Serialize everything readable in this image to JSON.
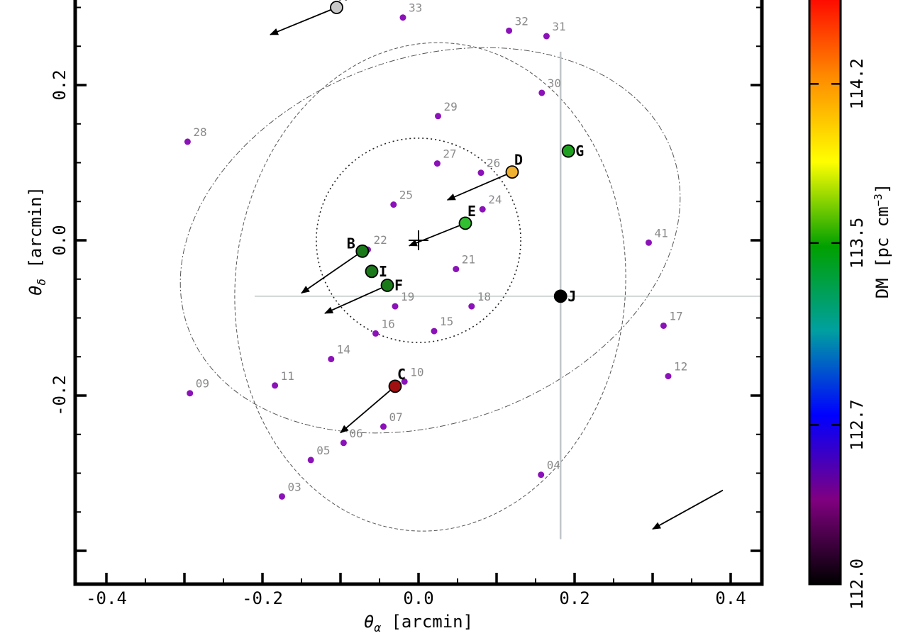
{
  "chart_data": {
    "type": "scatter",
    "xlabel": "θ_α [arcmin]",
    "ylabel": "θ_δ [arcmin]",
    "xlim": [
      -0.44,
      0.44
    ],
    "ylim": [
      -0.44,
      0.31
    ],
    "grid": false,
    "x_ticks": [
      {
        "value": -0.4,
        "label": "-0.4"
      },
      {
        "value": -0.2,
        "label": "-0.2"
      },
      {
        "value": 0.0,
        "label": "0.0"
      },
      {
        "value": 0.2,
        "label": "0.2"
      },
      {
        "value": 0.4,
        "label": "0.4"
      }
    ],
    "y_ticks": [
      {
        "value": -0.2,
        "label": "-0.2"
      },
      {
        "value": 0.0,
        "label": "0.0"
      },
      {
        "value": 0.2,
        "label": "0.2"
      }
    ],
    "colorbar": {
      "label": "DM [pc cm⁻³]",
      "range": [
        112.0,
        114.6
      ],
      "ticks": [
        {
          "value": 112.0,
          "label": "112.0"
        },
        {
          "value": 112.7,
          "label": "112.7"
        },
        {
          "value": 113.5,
          "label": "113.5"
        },
        {
          "value": 114.2,
          "label": "114.2"
        }
      ],
      "colors": [
        "#000000",
        "#800080",
        "#0000ff",
        "#00a0a0",
        "#00a000",
        "#ffff00",
        "#ff8c00",
        "#ff0000"
      ]
    },
    "labeled_points": [
      {
        "label": "A",
        "x": -0.105,
        "y": 0.3,
        "color": "#c8c8c8"
      },
      {
        "label": "B",
        "x": -0.072,
        "y": -0.014,
        "color": "#1a7a1a"
      },
      {
        "label": "C",
        "x": -0.03,
        "y": -0.188,
        "color": "#a01010"
      },
      {
        "label": "D",
        "x": 0.12,
        "y": 0.088,
        "color": "#f0b030"
      },
      {
        "label": "E",
        "x": 0.06,
        "y": 0.022,
        "color": "#30c030"
      },
      {
        "label": "F",
        "x": -0.04,
        "y": -0.058,
        "color": "#1a7a1a"
      },
      {
        "label": "G",
        "x": 0.192,
        "y": 0.115,
        "color": "#20a020"
      },
      {
        "label": "I",
        "x": -0.06,
        "y": -0.04,
        "color": "#1a7a1a"
      },
      {
        "label": "J",
        "x": 0.182,
        "y": -0.072,
        "color": "#000000"
      }
    ],
    "numbered_points": [
      {
        "label": "03",
        "x": -0.175,
        "y": -0.33
      },
      {
        "label": "04",
        "x": 0.157,
        "y": -0.302
      },
      {
        "label": "05",
        "x": -0.138,
        "y": -0.283
      },
      {
        "label": "06",
        "x": -0.096,
        "y": -0.261
      },
      {
        "label": "07",
        "x": -0.045,
        "y": -0.24
      },
      {
        "label": "09",
        "x": -0.293,
        "y": -0.197
      },
      {
        "label": "10",
        "x": -0.018,
        "y": -0.182
      },
      {
        "label": "11",
        "x": -0.184,
        "y": -0.187
      },
      {
        "label": "12",
        "x": 0.32,
        "y": -0.175
      },
      {
        "label": "14",
        "x": -0.112,
        "y": -0.153
      },
      {
        "label": "15",
        "x": 0.02,
        "y": -0.117
      },
      {
        "label": "16",
        "x": -0.055,
        "y": -0.12
      },
      {
        "label": "17",
        "x": 0.314,
        "y": -0.11
      },
      {
        "label": "18",
        "x": 0.068,
        "y": -0.085
      },
      {
        "label": "19",
        "x": -0.03,
        "y": -0.085
      },
      {
        "label": "21",
        "x": 0.048,
        "y": -0.037
      },
      {
        "label": "22",
        "x": -0.065,
        "y": -0.012
      },
      {
        "label": "24",
        "x": 0.082,
        "y": 0.04
      },
      {
        "label": "25",
        "x": -0.032,
        "y": 0.046
      },
      {
        "label": "26",
        "x": 0.08,
        "y": 0.087
      },
      {
        "label": "27",
        "x": 0.024,
        "y": 0.099
      },
      {
        "label": "28",
        "x": -0.296,
        "y": 0.127
      },
      {
        "label": "29",
        "x": 0.025,
        "y": 0.16
      },
      {
        "label": "30",
        "x": 0.158,
        "y": 0.19
      },
      {
        "label": "31",
        "x": 0.164,
        "y": 0.263
      },
      {
        "label": "32",
        "x": 0.116,
        "y": 0.27
      },
      {
        "label": "33",
        "x": -0.02,
        "y": 0.287
      },
      {
        "label": "41",
        "x": 0.295,
        "y": -0.003
      }
    ],
    "arrows": [
      {
        "from": [
          -0.105,
          0.3
        ],
        "to": [
          -0.19,
          0.265
        ]
      },
      {
        "from": [
          -0.072,
          -0.014
        ],
        "to": [
          -0.15,
          -0.068
        ]
      },
      {
        "from": [
          -0.04,
          -0.058
        ],
        "to": [
          -0.12,
          -0.094
        ]
      },
      {
        "from": [
          -0.03,
          -0.188
        ],
        "to": [
          -0.1,
          -0.248
        ]
      },
      {
        "from": [
          0.12,
          0.088
        ],
        "to": [
          0.037,
          0.052
        ]
      },
      {
        "from": [
          0.06,
          0.022
        ],
        "to": [
          -0.012,
          -0.007
        ]
      },
      {
        "from": [
          0.39,
          -0.322
        ],
        "to": [
          0.3,
          -0.372
        ]
      }
    ],
    "center_marker": {
      "x": 0.0,
      "y": 0.0
    },
    "circle": {
      "cx": 0.0,
      "cy": 0.0,
      "r": 0.131
    },
    "ellipses": [
      {
        "cx": 0.015,
        "cy": -0.06,
        "rx": 0.25,
        "ry": 0.315,
        "angle_deg": 5
      },
      {
        "cx": 0.015,
        "cy": 0.0,
        "rx": 0.33,
        "ry": 0.235,
        "angle_deg": -20
      }
    ],
    "crosshair": {
      "x": 0.182,
      "y": -0.072,
      "v_range": [
        -0.385,
        0.243
      ],
      "h_range": [
        -0.21,
        0.44
      ]
    }
  }
}
